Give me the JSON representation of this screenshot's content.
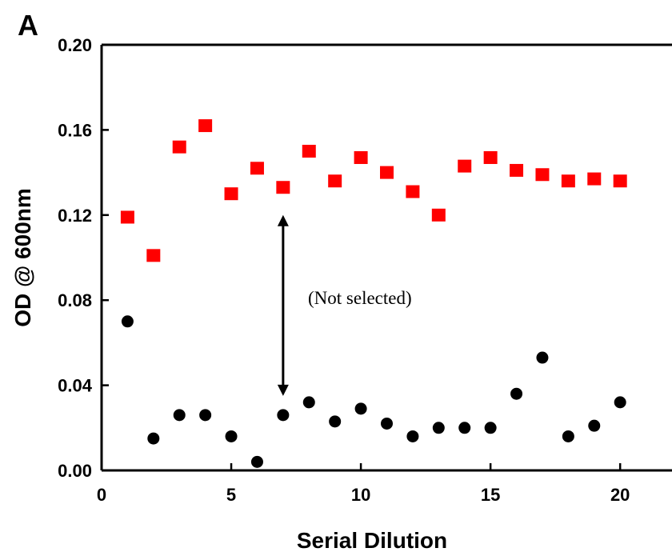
{
  "panel_label": "A",
  "annotation": "(Not selected)",
  "colors": {
    "squares": "#ff0000",
    "circles": "#000000",
    "axes": "#000000"
  },
  "chart_data": {
    "type": "scatter",
    "xlabel": "Serial Dilution",
    "ylabel": "OD @ 600nm",
    "xlim": [
      0,
      22
    ],
    "ylim": [
      0,
      0.2
    ],
    "x_ticks": [
      0,
      5,
      10,
      15,
      20
    ],
    "x_tick_labels": [
      "0",
      "5",
      "10",
      "15",
      "20"
    ],
    "y_ticks": [
      0,
      0.04,
      0.08,
      0.12,
      0.16,
      0.2
    ],
    "y_tick_labels": [
      "0.00",
      "0.04",
      "0.08",
      "0.12",
      "0.16",
      "0.20"
    ],
    "grid": false,
    "series": [
      {
        "marker": "square",
        "color": "#ff0000",
        "x": [
          1,
          2,
          3,
          4,
          5,
          6,
          7,
          8,
          9,
          10,
          11,
          12,
          13,
          14,
          15,
          16,
          17,
          18,
          19,
          20
        ],
        "y": [
          0.119,
          0.101,
          0.152,
          0.162,
          0.13,
          0.142,
          0.133,
          0.15,
          0.136,
          0.147,
          0.14,
          0.131,
          0.12,
          0.143,
          0.147,
          0.141,
          0.139,
          0.136,
          0.137,
          0.136
        ]
      },
      {
        "marker": "circle",
        "color": "#000000",
        "x": [
          1,
          2,
          3,
          4,
          5,
          6,
          7,
          8,
          9,
          10,
          11,
          12,
          13,
          14,
          15,
          16,
          17,
          18,
          19,
          20
        ],
        "y": [
          0.07,
          0.015,
          0.026,
          0.026,
          0.016,
          0.004,
          0.026,
          0.032,
          0.023,
          0.029,
          0.022,
          0.016,
          0.02,
          0.02,
          0.02,
          0.036,
          0.053,
          0.016,
          0.021,
          0.032
        ]
      }
    ],
    "arrow": {
      "x": 7,
      "y_from": 0.035,
      "y_to": 0.12
    }
  }
}
